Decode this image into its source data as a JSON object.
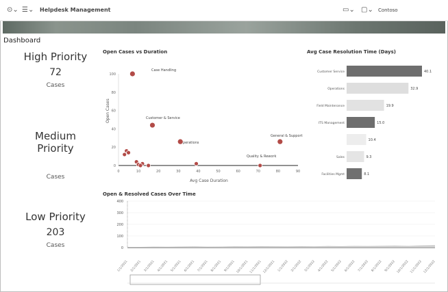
{
  "app": {
    "title": "Helpdesk Management",
    "account": "Contoso"
  },
  "breadcrumb": "Dashboard",
  "kpis": [
    {
      "label": "High Priority",
      "value": "72",
      "sub": "Cases"
    },
    {
      "label": "Medium Priority",
      "value": "",
      "sub": "Cases"
    },
    {
      "label": "Low Priority",
      "value": "203",
      "sub": "Cases"
    }
  ],
  "scatter": {
    "title": "Open Cases vs Duration",
    "subtitle": "",
    "xlabel": "Avg Case Duration",
    "ylabel": "Open Cases",
    "labels": [
      "Case Handling",
      "Customer & Service",
      "Operations",
      "General & Support",
      "Quality & Rework"
    ]
  },
  "bars": {
    "title": "Avg Case Resolution Time (Days)",
    "subtitle": ""
  },
  "timeline": {
    "title": "Open & Resolved Cases Over Time"
  },
  "chart_data": [
    {
      "type": "scatter",
      "title": "Open Cases vs Duration",
      "xlabel": "Avg Case Duration",
      "ylabel": "Open Cases",
      "xticks": [
        "0",
        "10",
        "20",
        "30",
        "40",
        "50",
        "60",
        "70",
        "80",
        "90"
      ],
      "yticks": [
        "0",
        "20",
        "40",
        "60",
        "80",
        "100"
      ],
      "xlim": [
        0,
        90
      ],
      "ylim": [
        0,
        100
      ],
      "points": [
        {
          "x": 7,
          "y": 100
        },
        {
          "x": 17,
          "y": 44
        },
        {
          "x": 31,
          "y": 26
        },
        {
          "x": 81,
          "y": 26
        },
        {
          "x": 39,
          "y": 2
        },
        {
          "x": 71,
          "y": 0
        },
        {
          "x": 4,
          "y": 16
        },
        {
          "x": 9,
          "y": 4
        },
        {
          "x": 12,
          "y": 2
        },
        {
          "x": 15,
          "y": 0
        },
        {
          "x": 5,
          "y": 14
        },
        {
          "x": 10,
          "y": 1
        },
        {
          "x": 3,
          "y": 12
        },
        {
          "x": 11,
          "y": 0
        }
      ],
      "point_color": "#b24b47"
    },
    {
      "type": "bar",
      "orientation": "horizontal",
      "title": "Avg Case Resolution Time (Days)",
      "categories": [
        "Customer Service",
        "Operations",
        "Field Maintenance",
        "ITS Management",
        "",
        "Sales",
        "Facilities Mgmt"
      ],
      "values": [
        40.1,
        32.9,
        19.9,
        15.0,
        10.4,
        9.3,
        8.1
      ],
      "data_labels": [
        "40.1",
        "32.9",
        "19.9",
        "15.0",
        "10.4",
        "9.3",
        "8.1"
      ],
      "colors": [
        "#6e6e6e",
        "#dedede",
        "#e2e2e2",
        "#6e6e6e",
        "#ededed",
        "#e5e5e5",
        "#707070"
      ]
    },
    {
      "type": "area",
      "title": "Open & Resolved Cases Over Time",
      "yticks": [
        "0",
        "100",
        "200",
        "300",
        "400"
      ],
      "ylim": [
        0,
        400
      ],
      "dates": [
        "1/1/2021",
        "2/1/2021",
        "3/1/2021",
        "4/1/2021",
        "5/1/2021",
        "6/1/2021",
        "7/1/2021",
        "8/1/2021",
        "9/1/2021",
        "10/1/2021",
        "11/1/2021",
        "12/1/2021",
        "1/1/2022",
        "2/1/2022",
        "3/1/2022",
        "4/1/2022",
        "5/1/2022",
        "6/1/2022",
        "7/1/2022",
        "8/1/2022",
        "9/1/2022",
        "10/1/2022",
        "11/1/2022",
        "12/1/2022"
      ],
      "series": [
        {
          "values": [
            5,
            6,
            8,
            7,
            9,
            10,
            8,
            9,
            11,
            10,
            12,
            11,
            10,
            12,
            11,
            13,
            12,
            14,
            13,
            15,
            16,
            14,
            18,
            20
          ]
        },
        {
          "values": [
            2,
            3,
            3,
            4,
            4,
            5,
            4,
            5,
            6,
            5,
            6,
            6,
            5,
            6,
            7,
            7,
            6,
            8,
            7,
            8,
            9,
            8,
            10,
            11
          ]
        }
      ]
    }
  ]
}
